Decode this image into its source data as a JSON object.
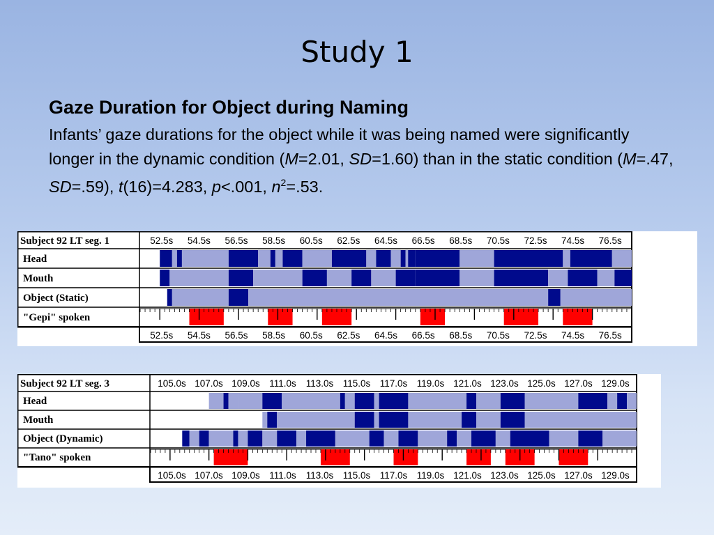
{
  "slide": {
    "title": "Study 1",
    "heading": "Gaze Duration for Object during Naming",
    "body": {
      "t1": "Infants’ gaze durations for the object while it was being named were significantly longer in the dynamic condition (",
      "m1": "M",
      "t2": "=2.01, ",
      "sd1": "SD",
      "t3": "=1.60) than in the static condition (",
      "m2": "M",
      "t4": "=.47, ",
      "sd2": "SD",
      "t5": "=.59), ",
      "t_stat": "t",
      "t6": "(16)=4.283, ",
      "p_stat": "p",
      "t7": "<.001, ",
      "eta": "n",
      "eta_sup": "2",
      "t8": "=.53."
    }
  },
  "colors": {
    "dark_blue": "#000a8c",
    "light_blue": "#9fa6d9",
    "red": "#ff0000",
    "white": "#ffffff"
  },
  "timelines": [
    {
      "header_label": "Subject 92 LT seg. 1",
      "ticks": [
        "52.5s",
        "54.5s",
        "56.5s",
        "58.5s",
        "60.5s",
        "62.5s",
        "64.5s",
        "66.5s",
        "68.5s",
        "70.5s",
        "72.5s",
        "74.5s",
        "76.5s"
      ],
      "rows": [
        {
          "label": "Head",
          "segments": [
            {
              "s": 0.0,
              "e": 0.04,
              "c": "white"
            },
            {
              "s": 0.04,
              "e": 0.065,
              "c": "dark"
            },
            {
              "s": 0.065,
              "e": 0.075,
              "c": "light"
            },
            {
              "s": 0.075,
              "e": 0.085,
              "c": "dark"
            },
            {
              "s": 0.085,
              "e": 0.18,
              "c": "light"
            },
            {
              "s": 0.18,
              "e": 0.24,
              "c": "dark"
            },
            {
              "s": 0.24,
              "e": 0.265,
              "c": "light"
            },
            {
              "s": 0.265,
              "e": 0.275,
              "c": "dark"
            },
            {
              "s": 0.275,
              "e": 0.29,
              "c": "light"
            },
            {
              "s": 0.29,
              "e": 0.33,
              "c": "dark"
            },
            {
              "s": 0.33,
              "e": 0.39,
              "c": "light"
            },
            {
              "s": 0.39,
              "e": 0.46,
              "c": "dark"
            },
            {
              "s": 0.46,
              "e": 0.48,
              "c": "light"
            },
            {
              "s": 0.48,
              "e": 0.51,
              "c": "dark"
            },
            {
              "s": 0.51,
              "e": 0.53,
              "c": "light"
            },
            {
              "s": 0.53,
              "e": 0.54,
              "c": "dark"
            },
            {
              "s": 0.54,
              "e": 0.545,
              "c": "light"
            },
            {
              "s": 0.545,
              "e": 0.56,
              "c": "dark"
            },
            {
              "s": 0.56,
              "e": 0.65,
              "c": "dark"
            },
            {
              "s": 0.65,
              "e": 0.72,
              "c": "light"
            },
            {
              "s": 0.72,
              "e": 0.86,
              "c": "dark"
            },
            {
              "s": 0.86,
              "e": 0.875,
              "c": "light"
            },
            {
              "s": 0.875,
              "e": 0.96,
              "c": "dark"
            },
            {
              "s": 0.96,
              "e": 1.0,
              "c": "light"
            }
          ]
        },
        {
          "label": "Mouth",
          "segments": [
            {
              "s": 0.0,
              "e": 0.04,
              "c": "white"
            },
            {
              "s": 0.04,
              "e": 0.06,
              "c": "dark"
            },
            {
              "s": 0.06,
              "e": 0.18,
              "c": "light"
            },
            {
              "s": 0.18,
              "e": 0.23,
              "c": "dark"
            },
            {
              "s": 0.23,
              "e": 0.33,
              "c": "light"
            },
            {
              "s": 0.33,
              "e": 0.38,
              "c": "dark"
            },
            {
              "s": 0.38,
              "e": 0.43,
              "c": "light"
            },
            {
              "s": 0.43,
              "e": 0.47,
              "c": "dark"
            },
            {
              "s": 0.47,
              "e": 0.52,
              "c": "light"
            },
            {
              "s": 0.52,
              "e": 0.56,
              "c": "dark"
            },
            {
              "s": 0.56,
              "e": 0.65,
              "c": "dark"
            },
            {
              "s": 0.65,
              "e": 0.72,
              "c": "light"
            },
            {
              "s": 0.72,
              "e": 0.83,
              "c": "dark"
            },
            {
              "s": 0.83,
              "e": 0.87,
              "c": "light"
            },
            {
              "s": 0.87,
              "e": 0.93,
              "c": "dark"
            },
            {
              "s": 0.93,
              "e": 0.965,
              "c": "light"
            },
            {
              "s": 0.965,
              "e": 1.0,
              "c": "dark"
            }
          ]
        },
        {
          "label": "Object (Static)",
          "segments": [
            {
              "s": 0.0,
              "e": 0.055,
              "c": "white"
            },
            {
              "s": 0.055,
              "e": 0.065,
              "c": "dark"
            },
            {
              "s": 0.065,
              "e": 0.18,
              "c": "light"
            },
            {
              "s": 0.18,
              "e": 0.22,
              "c": "dark"
            },
            {
              "s": 0.22,
              "e": 0.83,
              "c": "light"
            },
            {
              "s": 0.83,
              "e": 0.855,
              "c": "dark"
            },
            {
              "s": 0.855,
              "e": 1.0,
              "c": "light"
            }
          ]
        },
        {
          "label": "\"Gepi\" spoken",
          "kind": "spoken",
          "segments": [
            {
              "s": 0.1,
              "e": 0.17,
              "c": "red"
            },
            {
              "s": 0.26,
              "e": 0.31,
              "c": "red"
            },
            {
              "s": 0.37,
              "e": 0.43,
              "c": "red"
            },
            {
              "s": 0.57,
              "e": 0.62,
              "c": "red"
            },
            {
              "s": 0.74,
              "e": 0.81,
              "c": "red"
            },
            {
              "s": 0.86,
              "e": 0.92,
              "c": "red"
            }
          ]
        }
      ]
    },
    {
      "header_label": "Subject 92 LT seg. 3",
      "ticks": [
        "105.0s",
        "107.0s",
        "109.0s",
        "111.0s",
        "113.0s",
        "115.0s",
        "117.0s",
        "119.0s",
        "121.0s",
        "123.0s",
        "125.0s",
        "127.0s",
        "129.0s"
      ],
      "rows": [
        {
          "label": "Head",
          "segments": [
            {
              "s": 0.0,
              "e": 0.12,
              "c": "white"
            },
            {
              "s": 0.12,
              "e": 0.15,
              "c": "light"
            },
            {
              "s": 0.15,
              "e": 0.16,
              "c": "dark"
            },
            {
              "s": 0.16,
              "e": 0.18,
              "c": "light"
            },
            {
              "s": 0.18,
              "e": 0.23,
              "c": "light"
            },
            {
              "s": 0.23,
              "e": 0.27,
              "c": "dark"
            },
            {
              "s": 0.27,
              "e": 0.39,
              "c": "light"
            },
            {
              "s": 0.39,
              "e": 0.4,
              "c": "dark"
            },
            {
              "s": 0.4,
              "e": 0.42,
              "c": "light"
            },
            {
              "s": 0.42,
              "e": 0.46,
              "c": "dark"
            },
            {
              "s": 0.46,
              "e": 0.47,
              "c": "light"
            },
            {
              "s": 0.47,
              "e": 0.53,
              "c": "dark"
            },
            {
              "s": 0.53,
              "e": 0.65,
              "c": "light"
            },
            {
              "s": 0.65,
              "e": 0.67,
              "c": "dark"
            },
            {
              "s": 0.67,
              "e": 0.72,
              "c": "light"
            },
            {
              "s": 0.72,
              "e": 0.77,
              "c": "dark"
            },
            {
              "s": 0.77,
              "e": 0.88,
              "c": "light"
            },
            {
              "s": 0.88,
              "e": 0.94,
              "c": "dark"
            },
            {
              "s": 0.94,
              "e": 0.96,
              "c": "light"
            },
            {
              "s": 0.96,
              "e": 0.98,
              "c": "dark"
            },
            {
              "s": 0.98,
              "e": 1.0,
              "c": "light"
            }
          ]
        },
        {
          "label": "Mouth",
          "segments": [
            {
              "s": 0.0,
              "e": 0.23,
              "c": "white"
            },
            {
              "s": 0.23,
              "e": 0.24,
              "c": "light"
            },
            {
              "s": 0.24,
              "e": 0.26,
              "c": "dark"
            },
            {
              "s": 0.26,
              "e": 0.42,
              "c": "light"
            },
            {
              "s": 0.42,
              "e": 0.46,
              "c": "dark"
            },
            {
              "s": 0.46,
              "e": 0.47,
              "c": "light"
            },
            {
              "s": 0.47,
              "e": 0.53,
              "c": "dark"
            },
            {
              "s": 0.53,
              "e": 0.64,
              "c": "light"
            },
            {
              "s": 0.64,
              "e": 0.67,
              "c": "dark"
            },
            {
              "s": 0.67,
              "e": 0.72,
              "c": "light"
            },
            {
              "s": 0.72,
              "e": 0.77,
              "c": "dark"
            },
            {
              "s": 0.77,
              "e": 1.0,
              "c": "light"
            }
          ]
        },
        {
          "label": "Object (Dynamic)",
          "segments": [
            {
              "s": 0.0,
              "e": 0.065,
              "c": "white"
            },
            {
              "s": 0.065,
              "e": 0.08,
              "c": "dark"
            },
            {
              "s": 0.08,
              "e": 0.1,
              "c": "light"
            },
            {
              "s": 0.1,
              "e": 0.12,
              "c": "dark"
            },
            {
              "s": 0.12,
              "e": 0.17,
              "c": "light"
            },
            {
              "s": 0.17,
              "e": 0.18,
              "c": "dark"
            },
            {
              "s": 0.18,
              "e": 0.2,
              "c": "light"
            },
            {
              "s": 0.2,
              "e": 0.23,
              "c": "dark"
            },
            {
              "s": 0.23,
              "e": 0.26,
              "c": "light"
            },
            {
              "s": 0.26,
              "e": 0.3,
              "c": "dark"
            },
            {
              "s": 0.3,
              "e": 0.32,
              "c": "light"
            },
            {
              "s": 0.32,
              "e": 0.38,
              "c": "dark"
            },
            {
              "s": 0.38,
              "e": 0.45,
              "c": "light"
            },
            {
              "s": 0.45,
              "e": 0.48,
              "c": "dark"
            },
            {
              "s": 0.48,
              "e": 0.51,
              "c": "light"
            },
            {
              "s": 0.51,
              "e": 0.55,
              "c": "dark"
            },
            {
              "s": 0.55,
              "e": 0.61,
              "c": "light"
            },
            {
              "s": 0.61,
              "e": 0.63,
              "c": "dark"
            },
            {
              "s": 0.63,
              "e": 0.66,
              "c": "light"
            },
            {
              "s": 0.66,
              "e": 0.71,
              "c": "dark"
            },
            {
              "s": 0.71,
              "e": 0.74,
              "c": "light"
            },
            {
              "s": 0.74,
              "e": 0.82,
              "c": "dark"
            },
            {
              "s": 0.82,
              "e": 0.88,
              "c": "light"
            },
            {
              "s": 0.88,
              "e": 0.93,
              "c": "dark"
            },
            {
              "s": 0.93,
              "e": 1.0,
              "c": "light"
            }
          ]
        },
        {
          "label": "\"Tano\" spoken",
          "kind": "spoken",
          "segments": [
            {
              "s": 0.13,
              "e": 0.2,
              "c": "red"
            },
            {
              "s": 0.35,
              "e": 0.41,
              "c": "red"
            },
            {
              "s": 0.5,
              "e": 0.55,
              "c": "red"
            },
            {
              "s": 0.65,
              "e": 0.7,
              "c": "red"
            },
            {
              "s": 0.73,
              "e": 0.79,
              "c": "red"
            },
            {
              "s": 0.84,
              "e": 0.9,
              "c": "red"
            }
          ]
        }
      ]
    }
  ]
}
